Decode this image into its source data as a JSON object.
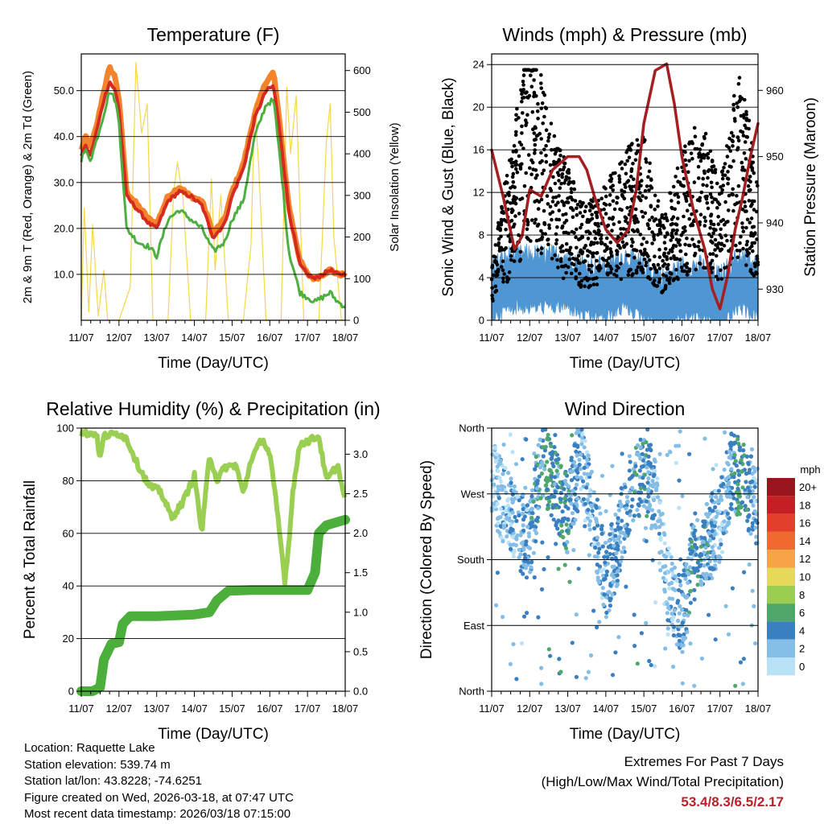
{
  "chart_data": [
    {
      "type": "line",
      "title": "Temperature (F)",
      "xlabel": "Time (Day/UTC)",
      "ylabel": "2m & 9m T (Red, Orange) & 2m Td (Green)",
      "y2label": "Solar Insolation (Yellow)",
      "categories": [
        "11/07",
        "12/07",
        "13/07",
        "14/07",
        "15/07",
        "16/07",
        "17/07",
        "18/07"
      ],
      "ylim": [
        0,
        58
      ],
      "y_ticks": [
        "10.0",
        "20.0",
        "30.0",
        "40.0",
        "50.0"
      ],
      "y_tick_values": [
        10,
        20,
        30,
        40,
        50
      ],
      "y2lim": [
        0,
        640
      ],
      "y2_ticks": [
        "0",
        "100",
        "200",
        "300",
        "400",
        "500",
        "600"
      ],
      "x": [
        0,
        0.1,
        0.25,
        0.4,
        0.6,
        0.75,
        0.9,
        1.0,
        1.2,
        1.5,
        1.8,
        2.0,
        2.3,
        2.6,
        2.9,
        3.2,
        3.5,
        3.8,
        4.0,
        4.3,
        4.6,
        4.9,
        5.1,
        5.3,
        5.5,
        5.7,
        5.8,
        6.0,
        6.2,
        6.4,
        6.6,
        6.8,
        7.0
      ],
      "series": [
        {
          "name": "9m T (Orange)",
          "color": "#f4832c",
          "values": [
            37,
            40,
            38,
            42,
            50,
            55,
            53,
            48,
            28,
            25,
            22,
            21,
            27,
            29,
            27,
            26,
            19,
            22,
            28,
            34,
            45,
            52,
            54,
            40,
            25,
            17,
            13,
            10,
            9,
            10,
            11,
            10,
            10
          ]
        },
        {
          "name": "2m T (Red)",
          "color": "#d42a20",
          "values": [
            36,
            38,
            36,
            41,
            48,
            52,
            50,
            46,
            27,
            24,
            21,
            20,
            26,
            28,
            27,
            25,
            18,
            21,
            27,
            33,
            44,
            50,
            51,
            39,
            24,
            16,
            12,
            10,
            9,
            10,
            11,
            10,
            10
          ]
        },
        {
          "name": "2m Td (Green)",
          "color": "#4caf3f",
          "values": [
            35,
            37,
            35,
            39,
            45,
            50,
            48,
            43,
            20,
            17,
            16,
            14,
            22,
            24,
            22,
            20,
            15,
            17,
            22,
            26,
            40,
            47,
            48,
            33,
            15,
            9,
            6,
            5,
            4,
            5,
            6,
            4,
            3
          ]
        }
      ],
      "solar": {
        "name": "Solar Insolation (Yellow)",
        "color": "#f5d84a",
        "x": [
          0,
          0.08,
          0.2,
          0.3,
          0.45,
          0.6,
          0.7,
          1.0,
          1.3,
          1.45,
          1.6,
          1.75,
          1.9,
          2.3,
          2.45,
          2.55,
          2.7,
          2.9,
          3.3,
          3.45,
          3.55,
          3.7,
          3.9,
          4.3,
          4.5,
          4.6,
          4.7,
          4.9,
          5.3,
          5.45,
          5.55,
          5.7,
          5.9,
          6.3,
          6.5,
          6.6,
          6.7,
          6.9,
          7.0
        ],
        "values": [
          0,
          270,
          20,
          230,
          10,
          120,
          0,
          0,
          80,
          620,
          450,
          520,
          0,
          0,
          310,
          380,
          290,
          0,
          0,
          340,
          120,
          300,
          0,
          0,
          180,
          520,
          380,
          0,
          0,
          560,
          400,
          540,
          0,
          0,
          430,
          520,
          200,
          0,
          0
        ]
      }
    },
    {
      "type": "scatter",
      "title": "Winds (mph) & Pressure (mb)",
      "xlabel": "Time (Day/UTC)",
      "ylabel": "Sonic Wind & Gust (Blue, Black)",
      "y2label": "Station Pressure (Maroon)",
      "categories": [
        "11/07",
        "12/07",
        "13/07",
        "14/07",
        "15/07",
        "16/07",
        "17/07",
        "18/07"
      ],
      "ylim": [
        0,
        25
      ],
      "y_ticks": [
        "0",
        "4",
        "8",
        "12",
        "16",
        "20",
        "24"
      ],
      "y2lim": [
        925.3,
        965.5
      ],
      "y2_ticks": [
        "930",
        "940",
        "950",
        "960"
      ],
      "pressure": {
        "name": "Station Pressure (Maroon)",
        "color": "#a41e22",
        "x": [
          0,
          0.3,
          0.6,
          0.8,
          1.0,
          1.3,
          1.6,
          2.0,
          2.3,
          2.5,
          2.7,
          3.0,
          3.3,
          3.6,
          3.8,
          4.0,
          4.3,
          4.6,
          4.8,
          5.0,
          5.3,
          5.6,
          5.8,
          6.0,
          6.2,
          6.4,
          6.6,
          6.8,
          7.0
        ],
        "values": [
          951,
          944,
          936,
          938,
          945,
          944,
          948,
          950,
          950,
          948,
          944,
          939,
          937,
          939,
          945,
          955,
          963,
          964,
          958,
          950,
          942,
          936,
          930,
          927,
          932,
          939,
          944,
          950,
          955
        ]
      },
      "wind_profile": {
        "x": [
          0,
          0.5,
          1,
          1.5,
          2,
          2.5,
          3,
          3.5,
          4,
          4.5,
          5,
          5.5,
          6,
          6.5,
          7
        ],
        "values": [
          3,
          4,
          4,
          4,
          4,
          3,
          3,
          4,
          3,
          2,
          3,
          3,
          2,
          4,
          3
        ]
      },
      "gust_profile": {
        "x": [
          0,
          0.5,
          1,
          1.5,
          2,
          2.5,
          3,
          3.5,
          4,
          4.5,
          5,
          5.5,
          6,
          6.5,
          7
        ],
        "values": [
          4,
          10,
          18,
          12,
          9,
          7,
          8,
          10,
          11,
          6,
          10,
          12,
          8,
          15,
          9
        ]
      }
    },
    {
      "type": "line",
      "title": "Relative Humidity (%) & Precipitation (in)",
      "xlabel": "Time (Day/UTC)",
      "ylabel": "Percent & Total Rainfall",
      "categories": [
        "11/07",
        "12/07",
        "13/07",
        "14/07",
        "15/07",
        "16/07",
        "17/07",
        "18/07"
      ],
      "ylim": [
        0,
        100
      ],
      "y_ticks": [
        "0",
        "20",
        "40",
        "60",
        "80",
        "100"
      ],
      "y2lim": [
        0,
        3.33
      ],
      "y2_ticks": [
        "0.0",
        "0.5",
        "1.0",
        "1.5",
        "2.0",
        "2.5",
        "3.0"
      ],
      "series": [
        {
          "name": "Relative Humidity",
          "color": "#9bcf53",
          "x": [
            0,
            0.4,
            0.5,
            0.6,
            1.0,
            1.2,
            1.5,
            1.8,
            2.1,
            2.4,
            2.7,
            3.0,
            3.2,
            3.4,
            3.6,
            3.8,
            4.1,
            4.3,
            4.5,
            4.8,
            5.0,
            5.2,
            5.4,
            5.5,
            5.6,
            5.8,
            6.0,
            6.3,
            6.5,
            6.7,
            6.8,
            7.0
          ],
          "values": [
            98,
            98,
            88,
            97,
            98,
            96,
            86,
            78,
            76,
            66,
            72,
            82,
            60,
            90,
            80,
            85,
            86,
            75,
            88,
            96,
            90,
            68,
            42,
            55,
            75,
            94,
            95,
            97,
            80,
            84,
            86,
            72
          ]
        },
        {
          "name": "Total Rainfall",
          "color": "#4daf3b",
          "x": [
            0,
            0.3,
            0.5,
            0.6,
            0.8,
            1.0,
            1.1,
            1.3,
            1.6,
            2.0,
            2.5,
            3.0,
            3.4,
            3.6,
            3.9,
            4.5,
            5.0,
            5.5,
            6.0,
            6.2,
            6.3,
            6.5,
            7.0
          ],
          "values": [
            0,
            0,
            0.05,
            0.4,
            0.6,
            0.62,
            0.85,
            0.95,
            0.95,
            0.95,
            0.96,
            0.97,
            1.0,
            1.15,
            1.27,
            1.28,
            1.28,
            1.28,
            1.28,
            1.5,
            2.0,
            2.1,
            2.17
          ]
        }
      ]
    },
    {
      "type": "scatter",
      "title": "Wind Direction",
      "xlabel": "Time (Day/UTC)",
      "ylabel": "Direction (Colored By Speed)",
      "categories": [
        "11/07",
        "12/07",
        "13/07",
        "14/07",
        "15/07",
        "16/07",
        "17/07",
        "18/07"
      ],
      "y_ticks": [
        "North",
        "East",
        "South",
        "West",
        "North"
      ],
      "y_tick_values": [
        0,
        90,
        180,
        270,
        360
      ],
      "direction_profile": {
        "x": [
          0,
          0.5,
          1,
          1.3,
          1.6,
          2,
          2.3,
          2.6,
          3,
          3.3,
          3.6,
          4,
          4.3,
          4.6,
          5,
          5.3,
          5.6,
          6,
          6.3,
          6.6,
          7
        ],
        "values": [
          290,
          240,
          200,
          320,
          290,
          240,
          320,
          260,
          150,
          200,
          270,
          300,
          270,
          150,
          100,
          190,
          200,
          230,
          300,
          290,
          250
        ]
      },
      "speed_profile": {
        "x": [
          0,
          0.5,
          1,
          1.5,
          2,
          2.5,
          3,
          3.5,
          4,
          4.5,
          5,
          5.5,
          6,
          6.5,
          7
        ],
        "values": [
          1,
          2,
          3,
          5,
          4,
          2,
          3,
          3,
          4,
          1,
          3,
          4,
          2,
          5,
          2
        ]
      },
      "legend": {
        "unit": "mph",
        "labels": [
          "20+",
          "18",
          "16",
          "14",
          "12",
          "10",
          "8",
          "6",
          "4",
          "2",
          "0"
        ],
        "colors": [
          "#98161d",
          "#c41f24",
          "#e2402c",
          "#ef6a2f",
          "#f6a346",
          "#e6d95a",
          "#9bcd52",
          "#4fa86a",
          "#3a80c0",
          "#84bde6",
          "#b9e2f7"
        ]
      }
    }
  ],
  "station": {
    "location": "Location: Raquette Lake",
    "elevation": "Station elevation: 539.74 m",
    "latlon": "Station lat/lon: 43.8228; -74.6251",
    "created": "Figure created on Wed, 2026-03-18, at 07:47 UTC",
    "recent": "Most recent data timestamp: 2026/03/18 07:15:00"
  },
  "extremes": {
    "title": "Extremes For Past 7 Days",
    "subtitle": "(High/Low/Max Wind/Total Precipitation)",
    "values": "53.4/8.3/6.5/2.17"
  }
}
